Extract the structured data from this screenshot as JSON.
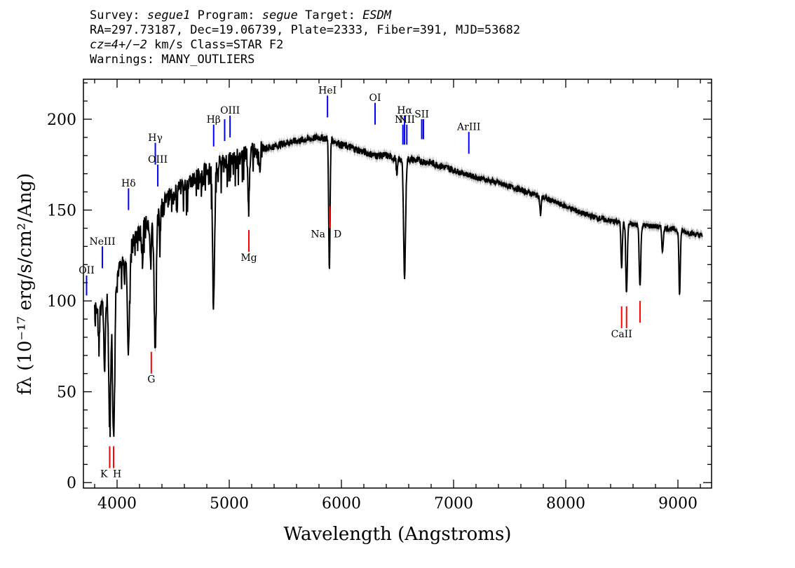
{
  "header": {
    "line1": {
      "survey_label": "Survey:",
      "survey": "segue1",
      "program_label": "Program:",
      "program": "segue",
      "target_label": "Target:",
      "target": "ESDM"
    },
    "line2": "RA=297.73187, Dec=19.06739, Plate=2333, Fiber=391, MJD=53682",
    "line3": {
      "cz": "cz=4+/−2",
      "rest": "km/s Class=STAR F2"
    },
    "line4": "Warnings: MANY_OUTLIERS"
  },
  "chart_data": {
    "type": "line",
    "xlabel": "Wavelength (Angstroms)",
    "ylabel": "fλ (10⁻¹⁷ erg/s/cm²/Ang)",
    "xlim": [
      3700,
      9300
    ],
    "ylim": [
      -3,
      222
    ],
    "x_ticks": [
      4000,
      5000,
      6000,
      7000,
      8000,
      9000
    ],
    "y_ticks": [
      0,
      50,
      100,
      150,
      200
    ],
    "continuum": [
      [
        3800,
        98
      ],
      [
        3850,
        100
      ],
      [
        3900,
        105
      ],
      [
        3950,
        110
      ],
      [
        4000,
        115
      ],
      [
        4050,
        122
      ],
      [
        4100,
        128
      ],
      [
        4150,
        133
      ],
      [
        4200,
        138
      ],
      [
        4300,
        146
      ],
      [
        4400,
        153
      ],
      [
        4500,
        160
      ],
      [
        4600,
        164
      ],
      [
        4700,
        168
      ],
      [
        4800,
        172
      ],
      [
        4900,
        176
      ],
      [
        5000,
        178
      ],
      [
        5100,
        180
      ],
      [
        5200,
        183
      ],
      [
        5300,
        184
      ],
      [
        5400,
        185
      ],
      [
        5500,
        187
      ],
      [
        5600,
        188
      ],
      [
        5700,
        189
      ],
      [
        5800,
        190
      ],
      [
        5900,
        189
      ],
      [
        6000,
        186
      ],
      [
        6100,
        184
      ],
      [
        6200,
        182
      ],
      [
        6300,
        180
      ],
      [
        6400,
        180
      ],
      [
        6500,
        178
      ],
      [
        6600,
        178
      ],
      [
        6700,
        177
      ],
      [
        6800,
        176
      ],
      [
        6900,
        174
      ],
      [
        7000,
        172
      ],
      [
        7200,
        168
      ],
      [
        7400,
        165
      ],
      [
        7600,
        161
      ],
      [
        7800,
        157
      ],
      [
        8000,
        152
      ],
      [
        8200,
        147
      ],
      [
        8400,
        144
      ],
      [
        8600,
        142
      ],
      [
        8800,
        141
      ],
      [
        9000,
        139
      ],
      [
        9200,
        136
      ]
    ],
    "absorption_features": [
      {
        "x": 3835,
        "depth": 18,
        "width": 6
      },
      {
        "x": 3889,
        "depth": 40,
        "width": 8
      },
      {
        "x": 3934,
        "depth": 76,
        "width": 9
      },
      {
        "x": 3969,
        "depth": 84,
        "width": 10
      },
      {
        "x": 4101,
        "depth": 56,
        "width": 9
      },
      {
        "x": 4226,
        "depth": 12,
        "width": 5
      },
      {
        "x": 4300,
        "depth": 28,
        "width": 6
      },
      {
        "x": 4340,
        "depth": 74,
        "width": 9
      },
      {
        "x": 4383,
        "depth": 12,
        "width": 5
      },
      {
        "x": 4861,
        "depth": 76,
        "width": 9
      },
      {
        "x": 5172,
        "depth": 30,
        "width": 6
      },
      {
        "x": 5270,
        "depth": 12,
        "width": 5
      },
      {
        "x": 5890,
        "depth": 48,
        "width": 5
      },
      {
        "x": 5896,
        "depth": 40,
        "width": 5
      },
      {
        "x": 6495,
        "depth": 10,
        "width": 5
      },
      {
        "x": 6563,
        "depth": 64,
        "width": 9
      },
      {
        "x": 7775,
        "depth": 10,
        "width": 6
      },
      {
        "x": 8498,
        "depth": 24,
        "width": 6
      },
      {
        "x": 8542,
        "depth": 38,
        "width": 7
      },
      {
        "x": 8662,
        "depth": 34,
        "width": 7
      },
      {
        "x": 8863,
        "depth": 14,
        "width": 6
      },
      {
        "x": 9015,
        "depth": 36,
        "width": 6
      }
    ],
    "emission_markers": [
      {
        "label": "OII",
        "x": 3728,
        "y": [
          103,
          114
        ],
        "label_y": 115
      },
      {
        "label": "NeIII",
        "x": 3869,
        "y": [
          118,
          130
        ],
        "label_y": 131
      },
      {
        "label": "Hδ",
        "x": 4102,
        "y": [
          150,
          162
        ],
        "label_y": 163
      },
      {
        "label": "Hγ",
        "x": 4341,
        "y": [
          175,
          187
        ],
        "label_y": 188
      },
      {
        "label": "OIII",
        "x": 4363,
        "y": [
          163,
          175
        ],
        "label_y": 176
      },
      {
        "label": "Hβ",
        "x": 4861,
        "y": [
          185,
          197
        ],
        "label_y": 198
      },
      {
        "label": "OIII",
        "x": 4959,
        "y": [
          188,
          200
        ],
        "label_y": 0
      },
      {
        "label": "OIII",
        "x": 5007,
        "y": [
          190,
          202
        ],
        "label_y": 203
      },
      {
        "label": "HeI",
        "x": 5876,
        "y": [
          201,
          213
        ],
        "label_y": 214
      },
      {
        "label": "OI",
        "x": 6300,
        "y": [
          197,
          209
        ],
        "label_y": 210
      },
      {
        "label": "NII",
        "x": 6548,
        "y": [
          186,
          197
        ],
        "label_y": 198
      },
      {
        "label": "Hα",
        "x": 6563,
        "y": [
          186,
          202
        ],
        "label_y": 203
      },
      {
        "label": "NII",
        "x": 6583,
        "y": [
          186,
          197
        ],
        "label_y": 198
      },
      {
        "label": "SII",
        "x": 6716,
        "y": [
          189,
          200
        ],
        "label_y": 201
      },
      {
        "label": "SII",
        "x": 6731,
        "y": [
          189,
          200
        ],
        "label_y": 0
      },
      {
        "label": "ArIII",
        "x": 7136,
        "y": [
          181,
          193
        ],
        "label_y": 194
      }
    ],
    "absorption_markers": [
      {
        "label": "K",
        "x": 3934,
        "y": [
          8,
          20
        ],
        "label_y": 3
      },
      {
        "label": "H",
        "x": 3969,
        "y": [
          8,
          20
        ],
        "label_y": 3
      },
      {
        "label": "G",
        "x": 4305,
        "y": [
          60,
          72
        ],
        "label_y": 55
      },
      {
        "label": "Mg",
        "x": 5175,
        "y": [
          127,
          139
        ],
        "label_y": 122
      },
      {
        "label": "Na",
        "x": 5894,
        "y": [
          140,
          152
        ],
        "label_y": 135
      },
      {
        "label": "D",
        "x": 5894,
        "y": [
          140,
          152
        ],
        "label_y": 135
      },
      {
        "label": "CaII",
        "x": 8498,
        "y": [
          85,
          97
        ],
        "label_y": 80
      },
      {
        "label": "CaII",
        "x": 8542,
        "y": [
          85,
          97
        ],
        "label_y": 0
      },
      {
        "label": "CaII",
        "x": 8662,
        "y": [
          88,
          100
        ],
        "label_y": 0
      }
    ],
    "colors": {
      "spectrum": "#000000",
      "error_band": "#b4b4b4",
      "emission": "#0000ff",
      "absorption": "#ff0000"
    }
  }
}
